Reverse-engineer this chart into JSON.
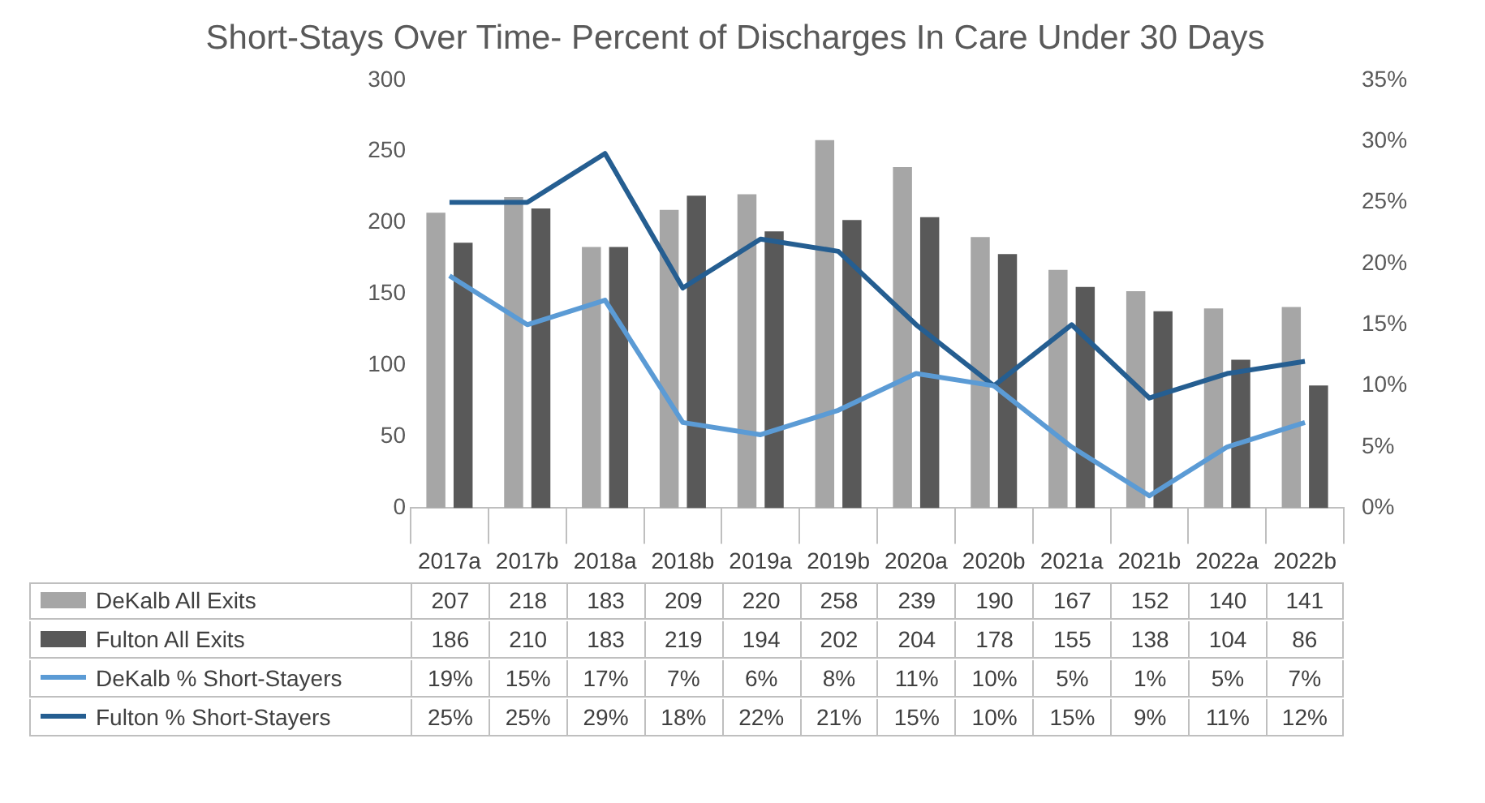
{
  "chart_data": {
    "type": "bar",
    "title": "Short-Stays Over Time- Percent of Discharges In Care Under 30 Days",
    "categories": [
      "2017a",
      "2017b",
      "2018a",
      "2018b",
      "2019a",
      "2019b",
      "2020a",
      "2020b",
      "2021a",
      "2021b",
      "2022a",
      "2022b"
    ],
    "series": [
      {
        "name": "DeKalb All Exits",
        "color": "#a6a6a6",
        "values": [
          207,
          218,
          183,
          209,
          220,
          258,
          239,
          190,
          167,
          152,
          140,
          141
        ],
        "value_labels": [
          "207",
          "218",
          "183",
          "209",
          "220",
          "258",
          "239",
          "190",
          "167",
          "152",
          "140",
          "141"
        ]
      },
      {
        "name": "Fulton All Exits",
        "color": "#595959",
        "values": [
          186,
          210,
          183,
          219,
          194,
          202,
          204,
          178,
          155,
          138,
          104,
          86
        ],
        "value_labels": [
          "186",
          "210",
          "183",
          "219",
          "194",
          "202",
          "204",
          "178",
          "155",
          "138",
          "104",
          "86"
        ]
      },
      {
        "name": "DeKalb % Short-Stayers",
        "type": "line",
        "axis": "y2",
        "color": "#5b9bd5",
        "values": [
          19,
          15,
          17,
          7,
          6,
          8,
          11,
          10,
          5,
          1,
          5,
          7
        ],
        "value_labels": [
          "19%",
          "15%",
          "17%",
          "7%",
          "6%",
          "8%",
          "11%",
          "10%",
          "5%",
          "1%",
          "5%",
          "7%"
        ]
      },
      {
        "name": "Fulton % Short-Stayers",
        "type": "line",
        "axis": "y2",
        "color": "#255e91",
        "values": [
          25,
          25,
          29,
          18,
          22,
          21,
          15,
          10,
          15,
          9,
          11,
          12
        ],
        "value_labels": [
          "25%",
          "25%",
          "29%",
          "18%",
          "22%",
          "21%",
          "15%",
          "10%",
          "15%",
          "9%",
          "11%",
          "12%"
        ]
      }
    ],
    "ylim": [
      0,
      300
    ],
    "yticks": [
      0,
      50,
      100,
      150,
      200,
      250,
      300
    ],
    "y2lim": [
      0,
      35
    ],
    "y2ticks": [
      {
        "value": 0,
        "label": "0%"
      },
      {
        "value": 5,
        "label": "5%"
      },
      {
        "value": 10,
        "label": "10%"
      },
      {
        "value": 15,
        "label": "15%"
      },
      {
        "value": 20,
        "label": "20%"
      },
      {
        "value": 25,
        "label": "25%"
      },
      {
        "value": 30,
        "label": "30%"
      },
      {
        "value": 35,
        "label": "35%"
      }
    ],
    "grid": false,
    "legend": "bottom",
    "marker": "none",
    "line_style": "solid"
  }
}
